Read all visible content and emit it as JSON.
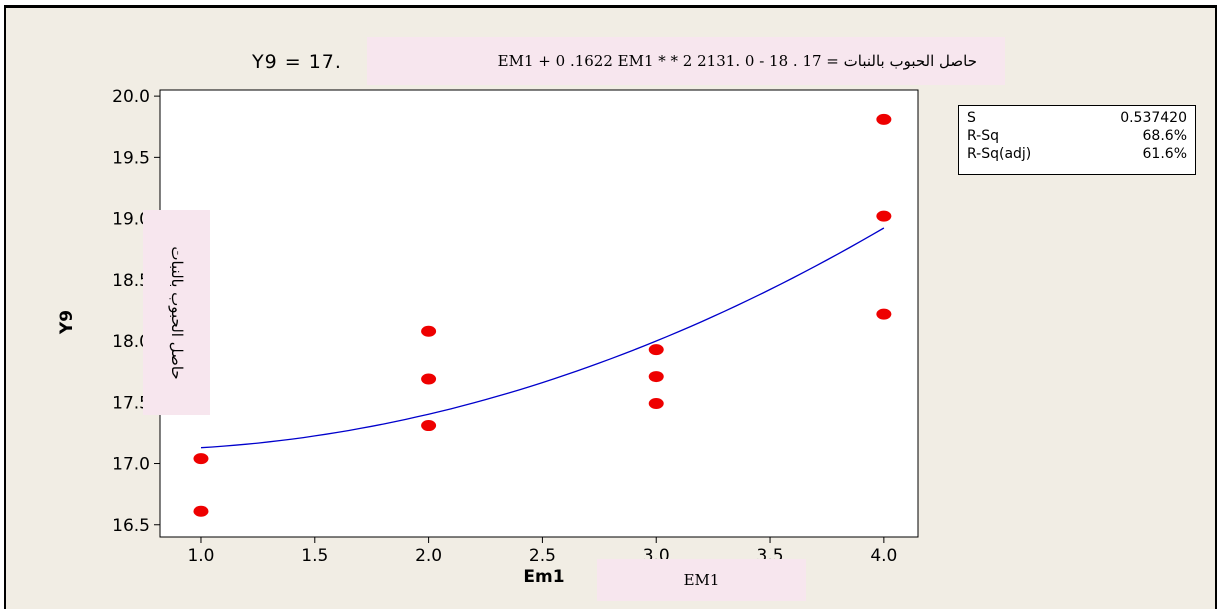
{
  "chart_data": {
    "type": "scatter",
    "title": "Y9 = 17.",
    "xlabel": "Em1",
    "ylabel": "Y9",
    "xlim": [
      0.82,
      4.15
    ],
    "ylim": [
      16.4,
      20.05
    ],
    "xticks": [
      "1.0",
      "1.5",
      "2.0",
      "2.5",
      "3.0",
      "3.5",
      "4.0"
    ],
    "yticks": [
      "16.5",
      "17.0",
      "17.5",
      "18.0",
      "18.5",
      "19.0",
      "19.5",
      "20.0"
    ],
    "points": [
      {
        "x": 1.0,
        "y": 17.04
      },
      {
        "x": 1.0,
        "y": 16.61
      },
      {
        "x": 2.0,
        "y": 18.08
      },
      {
        "x": 2.0,
        "y": 17.69
      },
      {
        "x": 2.0,
        "y": 17.31
      },
      {
        "x": 3.0,
        "y": 17.93
      },
      {
        "x": 3.0,
        "y": 17.71
      },
      {
        "x": 3.0,
        "y": 17.49
      },
      {
        "x": 4.0,
        "y": 19.81
      },
      {
        "x": 4.0,
        "y": 19.02
      },
      {
        "x": 4.0,
        "y": 18.22
      }
    ],
    "fit": {
      "type": "quadratic",
      "b0": 17.18,
      "b1": -0.2131,
      "b2": 0.1622,
      "x_range": [
        1.0,
        4.0
      ]
    },
    "point_color": "#ee0000",
    "line_color": "#0000cc",
    "grid": false
  },
  "equation_overlay": "حاصل الحبوب بالنبات = 17 . 18  -  0 .2131  EM1  +  0 .1622  EM1 * * 2",
  "ylabel_overlay": "حاصل الحبوب بالنبات",
  "xlabel_overlay": "EM1",
  "stats": [
    {
      "label": "S",
      "value": "0.537420"
    },
    {
      "label": "R-Sq",
      "value": "68.6%"
    },
    {
      "label": "R-Sq(adj)",
      "value": "61.6%"
    }
  ]
}
